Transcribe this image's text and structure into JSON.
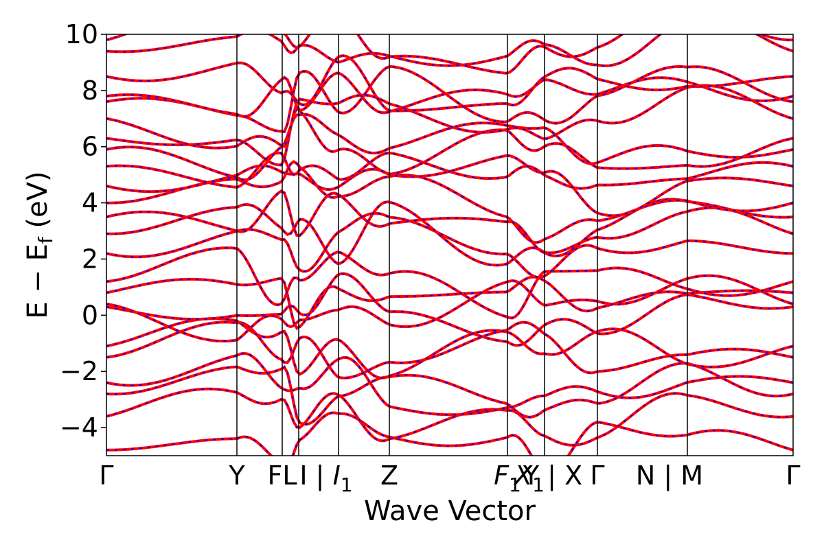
{
  "chart_data": {
    "type": "line",
    "xlabel": "Wave Vector",
    "ylabel_main": "E − E",
    "ylabel_sub": "f",
    "ylabel_unit": " (eV)",
    "ylim": [
      -5,
      10
    ],
    "yticks": [
      -4,
      -2,
      0,
      2,
      4,
      6,
      8,
      10
    ],
    "ytick_labels": [
      "−4",
      "−2",
      "0",
      "2",
      "4",
      "6",
      "8",
      "10"
    ],
    "legend": "none",
    "grid": false,
    "series_styles": [
      {
        "role": "solid",
        "color": "#ff0000"
      },
      {
        "role": "dashed-overlay",
        "color": "#0000ff"
      }
    ],
    "kpath_fraction": [
      0,
      0.19,
      0.256,
      0.28,
      0.338,
      0.412,
      0.584,
      0.638,
      0.715,
      0.846,
      1.0
    ],
    "kpoint_labels": [
      {
        "pos": 0.0,
        "text": "Γ"
      },
      {
        "pos": 0.19,
        "text": "Y"
      },
      {
        "pos": 0.256,
        "text": "FL"
      },
      {
        "pos": 0.32,
        "text": "I |",
        "italic_part": "I",
        "sub": "1"
      },
      {
        "pos": 0.412,
        "text": "Z"
      },
      {
        "pos": 0.584,
        "text": "",
        "italic_part": "F",
        "sub": "1"
      },
      {
        "pos": 0.616,
        "text": "",
        "italic_part": "X",
        "sub": "1"
      },
      {
        "pos": 0.65,
        "text": "Y | X"
      },
      {
        "pos": 0.715,
        "text": "Γ"
      },
      {
        "pos": 0.82,
        "text": "N | M"
      },
      {
        "pos": 1.0,
        "text": "Γ"
      }
    ],
    "bands_at_gamma": [
      -4.8,
      -3.6,
      -2.8,
      -2.4,
      -1.5,
      -1.1,
      0.3,
      0.4,
      0.8,
      1.2,
      2.2,
      2.9,
      3.5,
      4.0,
      4.6,
      5.3,
      5.9,
      6.3,
      7.0,
      7.6,
      7.8,
      8.5,
      9.4,
      9.8
    ],
    "band_count": 24
  }
}
